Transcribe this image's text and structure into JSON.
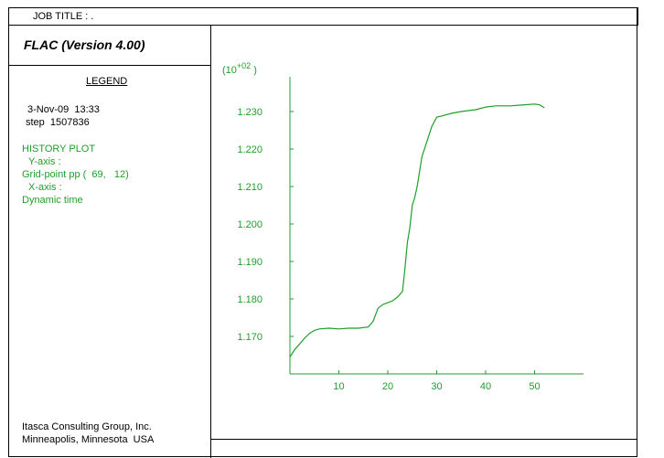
{
  "header": {
    "job_title": "JOB TITLE : ."
  },
  "sidebar": {
    "program": "FLAC (Version 4.00)",
    "legend_title": "LEGEND",
    "date": "3-Nov-09  13:33",
    "step": "step  1507836",
    "history_plot": "HISTORY PLOT",
    "y_axis_label": "Y-axis :",
    "y_axis_value": "Grid-point pp (  69,   12)",
    "x_axis_label": "X-axis :",
    "x_axis_value": "Dynamic time",
    "company_line1": "Itasca Consulting Group, Inc.",
    "company_line2": "Minneapolis, Minnesota  USA"
  },
  "colors": {
    "series": "#1f9e2a",
    "border": "#000000"
  },
  "chart_data": {
    "type": "line",
    "title": "",
    "xlabel": "",
    "ylabel": "",
    "y_multiplier": "(10+02 )",
    "xlim": [
      0,
      60
    ],
    "ylim": [
      1.16,
      1.238
    ],
    "xticks": [
      10,
      20,
      30,
      40,
      50
    ],
    "xtick_labels": [
      "10",
      "20",
      "30",
      "40",
      "50"
    ],
    "yticks": [
      1.17,
      1.18,
      1.19,
      1.2,
      1.21,
      1.22,
      1.23
    ],
    "ytick_labels": [
      "1.170",
      "1.180",
      "1.190",
      "1.200",
      "1.210",
      "1.220",
      "1.230"
    ],
    "grid": false,
    "series": [
      {
        "x": [
          0,
          1,
          2,
          3,
          4,
          5,
          6,
          8,
          10,
          12,
          14,
          16,
          17,
          18,
          19,
          20,
          21,
          22,
          23,
          23.5,
          24,
          24.5,
          25,
          25.5,
          26,
          27,
          28,
          29,
          30,
          31,
          33,
          35,
          38,
          40,
          42,
          45,
          48,
          50,
          51,
          52
        ],
        "y": [
          1.1645,
          1.1665,
          1.168,
          1.1695,
          1.1708,
          1.1716,
          1.172,
          1.1722,
          1.172,
          1.1722,
          1.1722,
          1.1725,
          1.174,
          1.1775,
          1.1785,
          1.179,
          1.1795,
          1.1805,
          1.182,
          1.188,
          1.195,
          1.199,
          1.205,
          1.207,
          1.21,
          1.218,
          1.222,
          1.226,
          1.2285,
          1.2288,
          1.2295,
          1.23,
          1.2305,
          1.2312,
          1.2315,
          1.2315,
          1.2318,
          1.232,
          1.2318,
          1.231
        ]
      }
    ]
  }
}
